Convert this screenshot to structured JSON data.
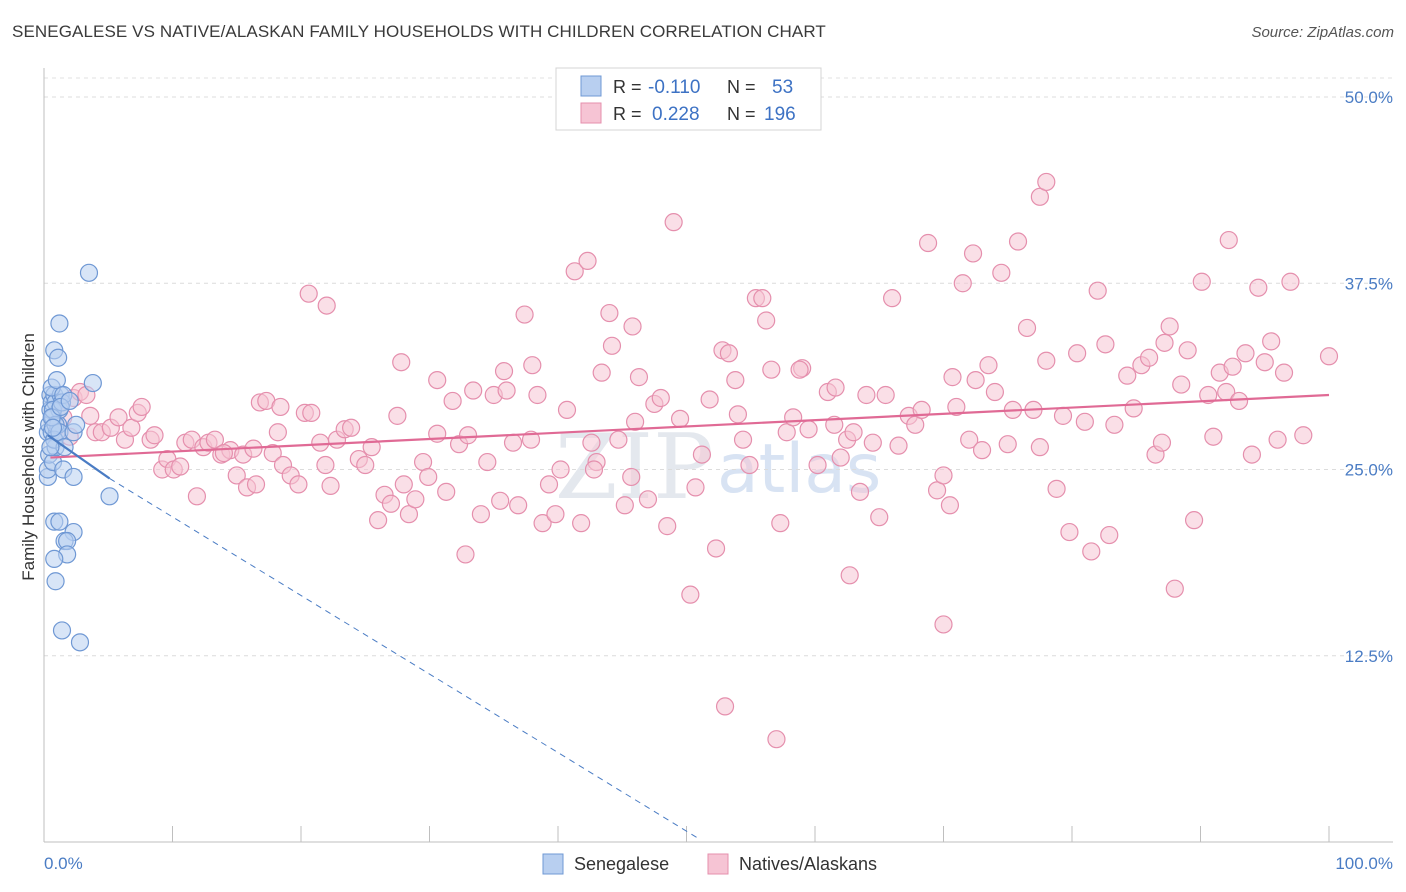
{
  "title": "SENEGALESE VS NATIVE/ALASKAN FAMILY HOUSEHOLDS WITH CHILDREN CORRELATION CHART",
  "source": "Source: ZipAtlas.com",
  "watermark": {
    "zip": "ZIP",
    "atlas": "atlas"
  },
  "colors": {
    "blue": "#4a7cc4",
    "blue_fill": "#b8cff0",
    "pink": "#e06a95",
    "pink_fill": "#f6c4d4"
  },
  "legend": {
    "r_label": "R =",
    "n_label": "N =",
    "rows": [
      {
        "r": "-0.110",
        "n": "53"
      },
      {
        "r": "0.228",
        "n": "196"
      }
    ]
  },
  "bottom_legend": [
    "Senegalese",
    "Natives/Alaskans"
  ],
  "chart_data": {
    "type": "scatter",
    "title": "SENEGALESE VS NATIVE/ALASKAN FAMILY HOUSEHOLDS WITH CHILDREN CORRELATION CHART",
    "xlabel": "",
    "ylabel": "Family Households with Children",
    "xlim": [
      0,
      100
    ],
    "ylim": [
      0,
      50
    ],
    "x_tick_labels": [
      "0.0%",
      "100.0%"
    ],
    "y_ticks": [
      {
        "value": 50.0,
        "label": "50.0%"
      },
      {
        "value": 37.5,
        "label": "37.5%"
      },
      {
        "value": 25.0,
        "label": "25.0%"
      },
      {
        "value": 12.5,
        "label": "12.5%"
      }
    ],
    "series": [
      {
        "name": "Senegalese",
        "trend": {
          "x0": 0.3,
          "y0": 27.3,
          "x1": 5.1,
          "y1": 24.4,
          "dash_to_x": 51.0,
          "dash_to_y": 0.2
        },
        "points": [
          [
            0.3,
            24.5
          ],
          [
            0.3,
            25.0
          ],
          [
            0.3,
            27.5
          ],
          [
            0.4,
            26.0
          ],
          [
            0.4,
            28.0
          ],
          [
            0.5,
            29.0
          ],
          [
            0.5,
            30.0
          ],
          [
            0.6,
            27.5
          ],
          [
            0.6,
            29.5
          ],
          [
            0.7,
            25.5
          ],
          [
            0.7,
            28.5
          ],
          [
            0.8,
            30.0
          ],
          [
            0.8,
            27.0
          ],
          [
            0.9,
            26.5
          ],
          [
            0.9,
            29.5
          ],
          [
            1.0,
            27.5
          ],
          [
            1.1,
            28.0
          ],
          [
            1.2,
            29.0
          ],
          [
            1.3,
            30.0
          ],
          [
            0.6,
            30.5
          ],
          [
            0.7,
            29.0
          ],
          [
            0.9,
            28.0
          ],
          [
            1.0,
            31.0
          ],
          [
            1.4,
            29.5
          ],
          [
            1.5,
            30.0
          ],
          [
            0.8,
            27.0
          ],
          [
            1.2,
            27.5
          ],
          [
            1.6,
            26.5
          ],
          [
            2.3,
            27.5
          ],
          [
            2.5,
            28.0
          ],
          [
            0.8,
            33.0
          ],
          [
            1.1,
            32.5
          ],
          [
            1.2,
            34.8
          ],
          [
            3.5,
            38.2
          ],
          [
            3.8,
            30.8
          ],
          [
            1.5,
            25.0
          ],
          [
            2.3,
            24.5
          ],
          [
            5.1,
            23.2
          ],
          [
            0.8,
            21.5
          ],
          [
            1.2,
            21.5
          ],
          [
            2.3,
            20.8
          ],
          [
            1.6,
            20.2
          ],
          [
            1.8,
            20.2
          ],
          [
            1.8,
            19.3
          ],
          [
            0.8,
            19.0
          ],
          [
            0.9,
            17.5
          ],
          [
            1.4,
            14.2
          ],
          [
            2.8,
            13.4
          ],
          [
            0.5,
            26.5
          ],
          [
            0.6,
            28.5
          ],
          [
            0.7,
            27.8
          ],
          [
            1.3,
            29.2
          ],
          [
            2.0,
            29.6
          ]
        ]
      },
      {
        "name": "Natives/Alaskans",
        "trend": {
          "x0": 0.5,
          "y0": 25.8,
          "x1": 100,
          "y1": 30.0
        },
        "points": [
          [
            1.5,
            28.5
          ],
          [
            2.0,
            27.2
          ],
          [
            2.3,
            29.8
          ],
          [
            2.8,
            30.2
          ],
          [
            3.3,
            30.0
          ],
          [
            3.6,
            28.6
          ],
          [
            4.0,
            27.5
          ],
          [
            4.5,
            27.5
          ],
          [
            5.2,
            27.8
          ],
          [
            5.8,
            28.5
          ],
          [
            6.3,
            27.0
          ],
          [
            6.8,
            27.8
          ],
          [
            7.3,
            28.8
          ],
          [
            7.6,
            29.2
          ],
          [
            8.3,
            27.0
          ],
          [
            8.6,
            27.3
          ],
          [
            9.2,
            25.0
          ],
          [
            9.6,
            25.7
          ],
          [
            10.1,
            25.0
          ],
          [
            10.6,
            25.2
          ],
          [
            11.0,
            26.8
          ],
          [
            11.5,
            27.0
          ],
          [
            11.9,
            23.2
          ],
          [
            12.4,
            26.5
          ],
          [
            12.8,
            26.8
          ],
          [
            13.3,
            27.0
          ],
          [
            13.8,
            26.0
          ],
          [
            14.5,
            26.3
          ],
          [
            15.0,
            24.6
          ],
          [
            15.5,
            26.0
          ],
          [
            15.8,
            23.8
          ],
          [
            16.5,
            24.0
          ],
          [
            16.8,
            29.5
          ],
          [
            17.3,
            29.6
          ],
          [
            17.8,
            26.1
          ],
          [
            18.2,
            27.5
          ],
          [
            18.6,
            25.3
          ],
          [
            19.2,
            24.6
          ],
          [
            19.8,
            24.0
          ],
          [
            20.3,
            28.8
          ],
          [
            20.8,
            28.8
          ],
          [
            21.5,
            26.8
          ],
          [
            21.9,
            25.3
          ],
          [
            22.3,
            23.9
          ],
          [
            22.8,
            27.0
          ],
          [
            23.4,
            27.7
          ],
          [
            23.9,
            27.8
          ],
          [
            24.5,
            25.7
          ],
          [
            25.0,
            25.3
          ],
          [
            25.5,
            26.5
          ],
          [
            26.0,
            21.6
          ],
          [
            26.5,
            23.3
          ],
          [
            27.0,
            22.7
          ],
          [
            27.5,
            28.6
          ],
          [
            28.0,
            24.0
          ],
          [
            28.4,
            22.0
          ],
          [
            28.9,
            23.0
          ],
          [
            29.5,
            25.5
          ],
          [
            29.9,
            24.5
          ],
          [
            30.6,
            27.4
          ],
          [
            31.3,
            23.5
          ],
          [
            31.8,
            29.6
          ],
          [
            32.3,
            26.7
          ],
          [
            32.8,
            19.3
          ],
          [
            33.4,
            30.3
          ],
          [
            34.0,
            22.0
          ],
          [
            34.5,
            25.5
          ],
          [
            35.0,
            30.0
          ],
          [
            35.5,
            22.9
          ],
          [
            36.0,
            30.3
          ],
          [
            36.5,
            26.8
          ],
          [
            36.9,
            22.6
          ],
          [
            37.4,
            35.4
          ],
          [
            37.9,
            27.0
          ],
          [
            38.4,
            30.0
          ],
          [
            38.8,
            21.4
          ],
          [
            39.3,
            24.0
          ],
          [
            39.8,
            22.0
          ],
          [
            40.2,
            25.0
          ],
          [
            40.7,
            29.0
          ],
          [
            41.3,
            38.3
          ],
          [
            41.8,
            21.4
          ],
          [
            42.3,
            39.0
          ],
          [
            42.6,
            26.8
          ],
          [
            43.0,
            25.5
          ],
          [
            43.4,
            31.5
          ],
          [
            44.0,
            35.5
          ],
          [
            44.2,
            33.3
          ],
          [
            44.7,
            27.0
          ],
          [
            45.2,
            22.6
          ],
          [
            45.7,
            24.5
          ],
          [
            46.0,
            28.2
          ],
          [
            46.3,
            31.2
          ],
          [
            47.0,
            23.0
          ],
          [
            47.5,
            29.4
          ],
          [
            48.0,
            29.8
          ],
          [
            48.5,
            21.2
          ],
          [
            49.0,
            41.6
          ],
          [
            49.5,
            28.4
          ],
          [
            50.3,
            16.6
          ],
          [
            50.7,
            23.8
          ],
          [
            51.2,
            26.0
          ],
          [
            51.8,
            29.7
          ],
          [
            52.3,
            19.7
          ],
          [
            52.8,
            33.0
          ],
          [
            53.3,
            32.8
          ],
          [
            53.8,
            31.0
          ],
          [
            54.4,
            27.0
          ],
          [
            54.9,
            25.3
          ],
          [
            55.4,
            36.5
          ],
          [
            55.9,
            36.5
          ],
          [
            56.6,
            31.7
          ],
          [
            57.3,
            21.4
          ],
          [
            57.8,
            27.5
          ],
          [
            58.3,
            28.5
          ],
          [
            59.0,
            31.8
          ],
          [
            59.5,
            27.7
          ],
          [
            60.2,
            25.3
          ],
          [
            61.0,
            30.2
          ],
          [
            61.5,
            28.0
          ],
          [
            62.0,
            25.8
          ],
          [
            62.5,
            27.0
          ],
          [
            63.0,
            27.5
          ],
          [
            63.5,
            23.5
          ],
          [
            64.0,
            30.0
          ],
          [
            64.5,
            26.8
          ],
          [
            65.0,
            21.8
          ],
          [
            65.5,
            30.0
          ],
          [
            66.5,
            26.6
          ],
          [
            67.3,
            28.6
          ],
          [
            67.8,
            28.0
          ],
          [
            68.3,
            29.0
          ],
          [
            68.8,
            40.2
          ],
          [
            69.5,
            23.6
          ],
          [
            70.0,
            24.6
          ],
          [
            70.5,
            22.6
          ],
          [
            71.0,
            29.2
          ],
          [
            71.5,
            37.5
          ],
          [
            72.0,
            27.0
          ],
          [
            72.5,
            31.0
          ],
          [
            73.0,
            26.3
          ],
          [
            73.5,
            32.0
          ],
          [
            74.0,
            30.2
          ],
          [
            74.5,
            38.2
          ],
          [
            75.0,
            26.7
          ],
          [
            75.4,
            29.0
          ],
          [
            75.8,
            40.3
          ],
          [
            76.5,
            34.5
          ],
          [
            77.0,
            29.0
          ],
          [
            77.5,
            26.5
          ],
          [
            78.0,
            32.3
          ],
          [
            78.8,
            23.7
          ],
          [
            79.3,
            28.6
          ],
          [
            79.8,
            20.8
          ],
          [
            80.4,
            32.8
          ],
          [
            81.0,
            28.2
          ],
          [
            81.5,
            19.5
          ],
          [
            82.0,
            37.0
          ],
          [
            82.6,
            33.4
          ],
          [
            82.9,
            20.6
          ],
          [
            83.3,
            28.0
          ],
          [
            84.3,
            31.3
          ],
          [
            84.8,
            29.1
          ],
          [
            85.4,
            32.0
          ],
          [
            86.0,
            32.5
          ],
          [
            86.5,
            26.0
          ],
          [
            87.0,
            26.8
          ],
          [
            87.6,
            34.6
          ],
          [
            88.0,
            17.0
          ],
          [
            88.5,
            30.7
          ],
          [
            89.0,
            33.0
          ],
          [
            89.5,
            21.6
          ],
          [
            90.1,
            37.6
          ],
          [
            90.6,
            30.0
          ],
          [
            91.0,
            27.2
          ],
          [
            91.5,
            31.5
          ],
          [
            92.0,
            30.2
          ],
          [
            92.5,
            31.9
          ],
          [
            93.0,
            29.6
          ],
          [
            93.5,
            32.8
          ],
          [
            94.0,
            26.0
          ],
          [
            94.5,
            37.2
          ],
          [
            95.0,
            32.2
          ],
          [
            95.5,
            33.6
          ],
          [
            96.0,
            27.0
          ],
          [
            96.5,
            31.5
          ],
          [
            97.0,
            37.6
          ],
          [
            98.0,
            27.3
          ],
          [
            100.0,
            32.6
          ],
          [
            66.0,
            36.5
          ],
          [
            70.7,
            31.2
          ],
          [
            72.3,
            39.5
          ],
          [
            61.6,
            30.5
          ],
          [
            58.8,
            31.7
          ],
          [
            56.2,
            35.0
          ],
          [
            54.0,
            28.7
          ],
          [
            45.8,
            34.6
          ],
          [
            42.8,
            25.0
          ],
          [
            38.0,
            32.0
          ],
          [
            35.8,
            31.6
          ],
          [
            33.0,
            27.3
          ],
          [
            30.6,
            31.0
          ],
          [
            27.8,
            32.2
          ],
          [
            22.0,
            36.0
          ],
          [
            20.6,
            36.8
          ],
          [
            18.4,
            29.2
          ],
          [
            16.3,
            26.4
          ],
          [
            14.0,
            26.1
          ],
          [
            53.0,
            9.1
          ],
          [
            57.0,
            6.9
          ],
          [
            70.0,
            14.6
          ],
          [
            77.5,
            43.3
          ],
          [
            78.0,
            44.3
          ],
          [
            62.7,
            17.9
          ],
          [
            92.2,
            40.4
          ],
          [
            87.2,
            33.5
          ]
        ]
      }
    ]
  }
}
